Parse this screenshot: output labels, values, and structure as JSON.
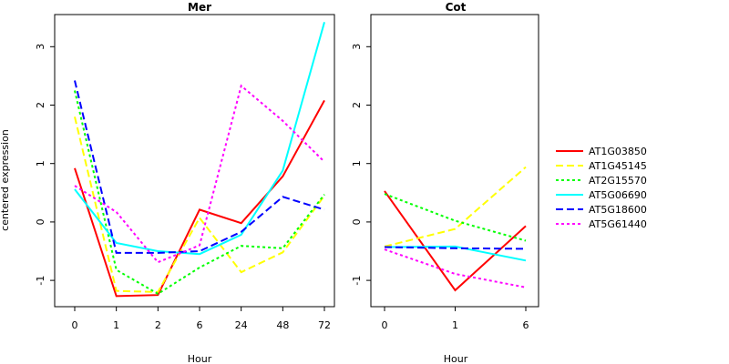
{
  "y_axis_label": "centered expression",
  "y_ticks": [
    -1,
    0,
    1,
    2,
    3
  ],
  "legend": [
    {
      "name": "AT1G03850",
      "color": "#ff0000",
      "dash": "solid"
    },
    {
      "name": "AT1G45145",
      "color": "#ffff00",
      "dash": "dashed"
    },
    {
      "name": "AT2G15570",
      "color": "#00ff00",
      "dash": "dotted"
    },
    {
      "name": "AT5G06690",
      "color": "#00ffff",
      "dash": "solid"
    },
    {
      "name": "AT5G18600",
      "color": "#0000ff",
      "dash": "dashed"
    },
    {
      "name": "AT5G61440",
      "color": "#ff00ff",
      "dash": "dotted"
    }
  ],
  "chart_data": [
    {
      "type": "line",
      "title": "Mer",
      "xlabel": "Hour",
      "ylabel": "centered expression",
      "categories": [
        "0",
        "1",
        "2",
        "6",
        "24",
        "48",
        "72"
      ],
      "ylim": [
        -1.45,
        3.55
      ],
      "grid": false,
      "series": [
        {
          "name": "AT1G03850",
          "values": [
            0.92,
            -1.27,
            -1.25,
            0.21,
            -0.02,
            0.78,
            2.08
          ]
        },
        {
          "name": "AT1G45145",
          "values": [
            1.8,
            -1.18,
            -1.2,
            0.07,
            -0.86,
            -0.52,
            0.45
          ]
        },
        {
          "name": "AT2G15570",
          "values": [
            2.25,
            -0.82,
            -1.23,
            -0.78,
            -0.41,
            -0.45,
            0.47
          ]
        },
        {
          "name": "AT5G06690",
          "values": [
            0.56,
            -0.36,
            -0.5,
            -0.55,
            -0.22,
            0.88,
            3.42
          ]
        },
        {
          "name": "AT5G18600",
          "values": [
            2.42,
            -0.53,
            -0.53,
            -0.5,
            -0.17,
            0.43,
            0.21
          ]
        },
        {
          "name": "AT5G61440",
          "values": [
            0.62,
            0.17,
            -0.69,
            -0.4,
            2.33,
            1.73,
            1.03
          ]
        }
      ]
    },
    {
      "type": "line",
      "title": "Cot",
      "xlabel": "Hour",
      "categories": [
        "0",
        "1",
        "6"
      ],
      "ylim": [
        -1.45,
        3.55
      ],
      "grid": false,
      "series": [
        {
          "name": "AT1G03850",
          "values": [
            0.53,
            -1.17,
            -0.07
          ]
        },
        {
          "name": "AT1G45145",
          "values": [
            -0.42,
            -0.12,
            0.94
          ]
        },
        {
          "name": "AT2G15570",
          "values": [
            0.48,
            0.02,
            -0.32
          ]
        },
        {
          "name": "AT5G06690",
          "values": [
            -0.43,
            -0.42,
            -0.66
          ]
        },
        {
          "name": "AT5G18600",
          "values": [
            -0.43,
            -0.45,
            -0.46
          ]
        },
        {
          "name": "AT5G61440",
          "values": [
            -0.47,
            -0.89,
            -1.12
          ]
        }
      ]
    }
  ]
}
